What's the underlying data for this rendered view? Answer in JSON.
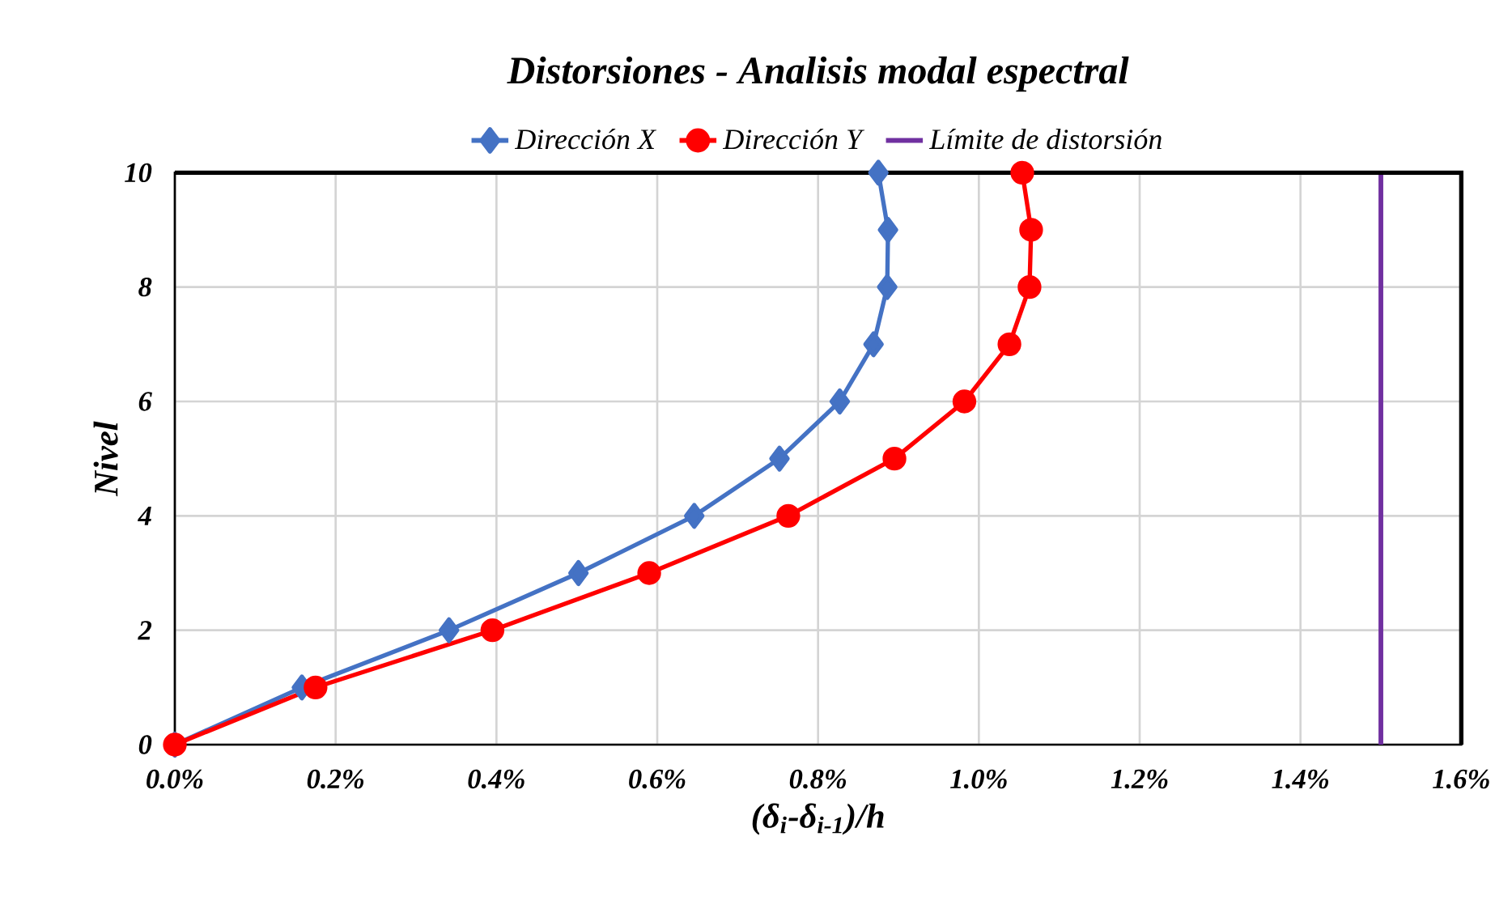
{
  "chart_data": {
    "type": "line",
    "title": "Distorsiones - Analisis modal espectral",
    "xlabel": "(δ$_{i}$-δ$_{i-1}$)/h",
    "ylabel": "Nivel",
    "xlim": [
      0,
      1.6
    ],
    "ylim": [
      0,
      10
    ],
    "xticks": [
      {
        "value": 0,
        "label": "0.0%"
      },
      {
        "value": 0.2,
        "label": "0.2%"
      },
      {
        "value": 0.4,
        "label": "0.4%"
      },
      {
        "value": 0.6,
        "label": "0.6%"
      },
      {
        "value": 0.8,
        "label": "0.8%"
      },
      {
        "value": 1.0,
        "label": "1.0%"
      },
      {
        "value": 1.2,
        "label": "1.2%"
      },
      {
        "value": 1.4,
        "label": "1.4%"
      },
      {
        "value": 1.6,
        "label": "1.6%"
      }
    ],
    "yticks": [
      0,
      2,
      4,
      6,
      8,
      10
    ],
    "grid": true,
    "legend": "top",
    "line_style": "solid",
    "series": [
      {
        "name": "Dirección X",
        "color": "#4472c4",
        "marker": "diamond",
        "x": [
          0,
          0.158,
          0.341,
          0.502,
          0.646,
          0.752,
          0.827,
          0.869,
          0.886,
          0.887,
          0.875
        ],
        "values": [
          0,
          1,
          2,
          3,
          4,
          5,
          6,
          7,
          8,
          9,
          10
        ]
      },
      {
        "name": "Dirección Y",
        "color": "#ff0000",
        "marker": "circle",
        "x": [
          0,
          0.175,
          0.395,
          0.59,
          0.763,
          0.895,
          0.982,
          1.038,
          1.063,
          1.065,
          1.054
        ],
        "values": [
          0,
          1,
          2,
          3,
          4,
          5,
          6,
          7,
          8,
          9,
          10
        ]
      }
    ],
    "ref_lines": [
      {
        "axis": "x",
        "value": 1.5,
        "label": "Límite de distorsión",
        "color": "#7030a0"
      }
    ]
  }
}
